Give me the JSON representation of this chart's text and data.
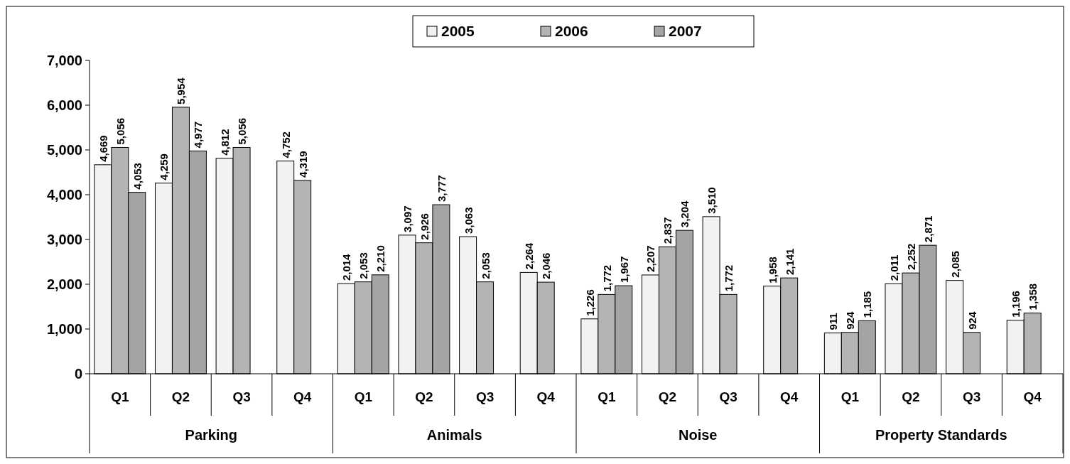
{
  "chart_data": {
    "type": "bar",
    "categories": [
      "Q1",
      "Q2",
      "Q3",
      "Q4",
      "Q1",
      "Q2",
      "Q3",
      "Q4",
      "Q1",
      "Q2",
      "Q3",
      "Q4",
      "Q1",
      "Q2",
      "Q3",
      "Q4"
    ],
    "series": [
      {
        "name": "2005",
        "color": "#f2f2f2",
        "values": [
          4669,
          4259,
          4812,
          4752,
          2014,
          3097,
          3063,
          2264,
          1226,
          2207,
          3510,
          1958,
          911,
          2011,
          2085,
          1196
        ],
        "value_labels": [
          "4,669",
          "4,259",
          "4,812",
          "4,752",
          "2,014",
          "3,097",
          "3,063",
          "2,264",
          "1,226",
          "2,207",
          "3,510",
          "1,958",
          "911",
          "2,011",
          "2,085",
          "1,196"
        ]
      },
      {
        "name": "2006",
        "color": "#b4b4b4",
        "values": [
          5056,
          5954,
          5056,
          4319,
          2053,
          2926,
          2053,
          2046,
          1772,
          2837,
          1772,
          2141,
          924,
          2252,
          924,
          1358
        ],
        "value_labels": [
          "5,056",
          "5,954",
          "5,056",
          "4,319",
          "2,053",
          "2,926",
          "2,053",
          "2,046",
          "1,772",
          "2,837",
          "1,772",
          "2,141",
          "924",
          "2,252",
          "924",
          "1,358"
        ]
      },
      {
        "name": "2007",
        "color": "#a4a4a4",
        "values": [
          4053,
          4977,
          null,
          null,
          2210,
          3777,
          null,
          null,
          1967,
          3204,
          null,
          null,
          1185,
          2871,
          null,
          null
        ],
        "value_labels": [
          "4,053",
          "4,977",
          null,
          null,
          "2,210",
          "3,777",
          null,
          null,
          "1,967",
          "3,204",
          null,
          null,
          "1,185",
          "2,871",
          null,
          null
        ]
      }
    ],
    "annotations": [
      "Parking",
      "Animals",
      "Noise",
      "Property Standards"
    ],
    "ylim": [
      0,
      7000
    ],
    "yticks": [
      {
        "value": 0,
        "label": "0"
      },
      {
        "value": 1000,
        "label": "1,000"
      },
      {
        "value": 2000,
        "label": "2,000"
      },
      {
        "value": 3000,
        "label": "3,000"
      },
      {
        "value": 4000,
        "label": "4,000"
      },
      {
        "value": 5000,
        "label": "5,000"
      },
      {
        "value": 6000,
        "label": "6,000"
      },
      {
        "value": 7000,
        "label": "7,000"
      }
    ],
    "legend": "top"
  }
}
